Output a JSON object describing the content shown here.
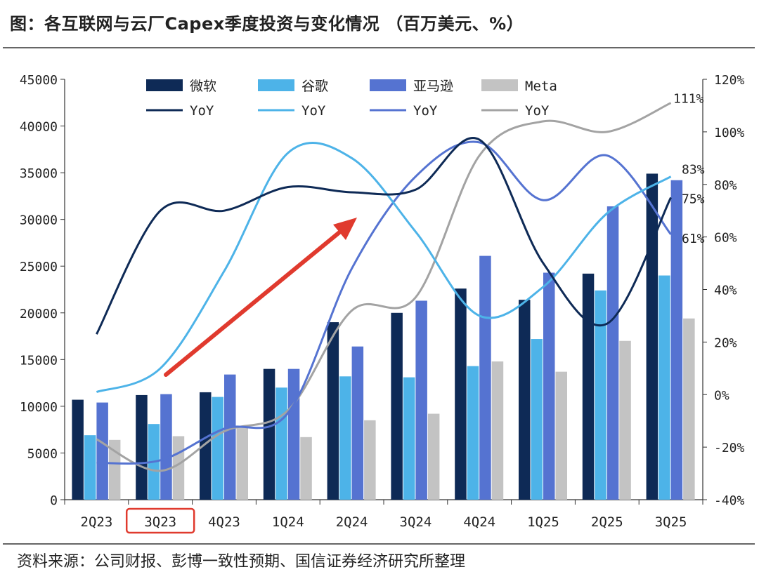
{
  "title": "图：各互联网与云厂Capex季度投资与变化情况 （百万美元、%）",
  "source": "资料来源：公司财报、彭博一致性预期、国信证券经济研究所整理",
  "chart_data": {
    "type": "bar",
    "categories": [
      "2Q23",
      "3Q23",
      "4Q23",
      "1Q24",
      "2Q24",
      "3Q24",
      "4Q24",
      "1Q25",
      "2Q25",
      "3Q25"
    ],
    "highlighted_category": "3Q23",
    "ylim_left": [
      0,
      45000
    ],
    "yticks_left": [
      0,
      5000,
      10000,
      15000,
      20000,
      25000,
      30000,
      35000,
      40000,
      45000
    ],
    "ylim_right": [
      -40,
      120
    ],
    "yticks_right": [
      "-40%",
      "-20%",
      "0%",
      "20%",
      "40%",
      "60%",
      "80%",
      "100%",
      "120%"
    ],
    "series": [
      {
        "name": "微软",
        "color": "#0e2a56",
        "values": [
          10700,
          11200,
          11500,
          14000,
          19000,
          20000,
          22600,
          21400,
          24200,
          34900
        ]
      },
      {
        "name": "谷歌",
        "color": "#4db3e8",
        "values": [
          6900,
          8100,
          11000,
          12000,
          13200,
          13100,
          14300,
          17200,
          22400,
          24000
        ]
      },
      {
        "name": "亚马逊",
        "color": "#5573d1",
        "values": [
          10400,
          11300,
          13400,
          14000,
          16400,
          21300,
          26100,
          24300,
          31400,
          34200
        ]
      },
      {
        "name": "Meta",
        "color": "#c3c3c3",
        "values": [
          6400,
          6800,
          7700,
          6700,
          8500,
          9200,
          14800,
          13700,
          17000,
          19400
        ]
      }
    ],
    "yoy_series": [
      {
        "name": "YoY",
        "color": "#0e2a56",
        "values": [
          23,
          70,
          70,
          79,
          77,
          78,
          97,
          50,
          27,
          75
        ]
      },
      {
        "name": "YoY",
        "color": "#4db3e8",
        "values": [
          1,
          10,
          47,
          92,
          90,
          62,
          30,
          41,
          69,
          83
        ]
      },
      {
        "name": "YoY",
        "color": "#5573d1",
        "values": [
          -26,
          -25,
          -13,
          -7,
          48,
          83,
          96,
          74,
          91,
          61
        ]
      },
      {
        "name": "YoY",
        "color": "#a3a3a3",
        "values": [
          -17,
          -29,
          -14,
          -6,
          32,
          37,
          91,
          104,
          100,
          111
        ]
      }
    ],
    "end_labels": [
      "75%",
      "83%",
      "61%",
      "111%"
    ],
    "annotation": "red upward arrow from 3Q23 toward 2Q24"
  }
}
